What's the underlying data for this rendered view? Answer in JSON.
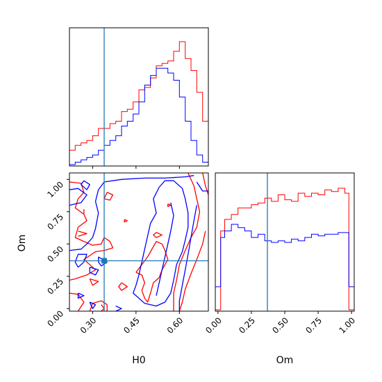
{
  "colors": {
    "red": "#ff0000",
    "blue": "#0000ff",
    "truth": "#1f77b4",
    "frame": "#000000"
  },
  "chart_data": [
    {
      "type": "step-histogram",
      "panel": "H0 marginal",
      "x_range": [
        0.22,
        0.7
      ],
      "bins_edges": [
        0.22,
        0.24,
        0.26,
        0.28,
        0.3,
        0.32,
        0.34,
        0.36,
        0.38,
        0.4,
        0.42,
        0.44,
        0.46,
        0.48,
        0.5,
        0.52,
        0.54,
        0.56,
        0.58,
        0.6,
        0.62,
        0.64,
        0.66,
        0.68,
        0.7
      ],
      "series": [
        {
          "color": "red",
          "counts": [
            6,
            8,
            9,
            10,
            12,
            15,
            15,
            17,
            18,
            22,
            23,
            26,
            31,
            32,
            36,
            41,
            42,
            43,
            47,
            51,
            44,
            39,
            30,
            18
          ]
        },
        {
          "color": "blue",
          "counts": [
            0,
            1,
            2,
            3,
            4,
            6,
            8,
            10,
            12,
            16,
            18,
            21,
            26,
            33,
            37,
            40,
            40,
            38,
            35,
            28,
            18,
            10,
            4,
            1
          ]
        }
      ],
      "truth": 0.34,
      "ticks": [
        0.3,
        0.45,
        0.6
      ]
    },
    {
      "type": "contour",
      "panel": "Om vs H0 joint",
      "x_range": [
        0.22,
        0.7
      ],
      "y_range": [
        -0.02,
        1.05
      ],
      "xlabel": "H0",
      "ylabel": "Om",
      "x_ticks": [
        "0.30",
        "0.45",
        "0.60"
      ],
      "y_ticks": [
        "0.00",
        "0.25",
        "0.50",
        "0.75",
        "1.00"
      ],
      "x_tick_values": [
        0.3,
        0.45,
        0.6
      ],
      "y_tick_values": [
        0.0,
        0.25,
        0.5,
        0.75,
        1.0
      ],
      "truth": {
        "x": 0.34,
        "y": 0.37
      },
      "red_contours": [
        [
          [
            0.63,
            1.05
          ],
          [
            0.65,
            0.95
          ],
          [
            0.66,
            0.85
          ],
          [
            0.67,
            0.75
          ],
          [
            0.66,
            0.63
          ],
          [
            0.64,
            0.55
          ],
          [
            0.62,
            0.45
          ],
          [
            0.6,
            0.34
          ],
          [
            0.59,
            0.22
          ],
          [
            0.58,
            0.12
          ],
          [
            0.58,
            -0.02
          ]
        ],
        [
          [
            0.68,
            1.05
          ],
          [
            0.69,
            0.95
          ],
          [
            0.7,
            0.88
          ]
        ],
        [
          [
            0.69,
            0.6
          ],
          [
            0.68,
            0.5
          ],
          [
            0.66,
            0.38
          ],
          [
            0.64,
            0.27
          ],
          [
            0.62,
            0.15
          ],
          [
            0.61,
            0.05
          ],
          [
            0.6,
            -0.02
          ]
        ],
        [
          [
            0.22,
            0.98
          ],
          [
            0.26,
            0.97
          ],
          [
            0.27,
            0.9
          ],
          [
            0.25,
            0.85
          ],
          [
            0.24,
            0.78
          ],
          [
            0.27,
            0.73
          ],
          [
            0.28,
            0.68
          ],
          [
            0.25,
            0.63
          ],
          [
            0.24,
            0.55
          ],
          [
            0.27,
            0.52
          ],
          [
            0.3,
            0.49
          ],
          [
            0.33,
            0.5
          ],
          [
            0.34,
            0.55
          ],
          [
            0.36,
            0.52
          ],
          [
            0.37,
            0.47
          ],
          [
            0.34,
            0.45
          ],
          [
            0.31,
            0.44
          ],
          [
            0.29,
            0.41
          ],
          [
            0.27,
            0.38
          ],
          [
            0.29,
            0.34
          ],
          [
            0.31,
            0.3
          ],
          [
            0.28,
            0.26
          ],
          [
            0.24,
            0.23
          ],
          [
            0.22,
            0.22
          ]
        ],
        [
          [
            0.22,
            0.12
          ],
          [
            0.25,
            0.11
          ],
          [
            0.27,
            0.05
          ],
          [
            0.25,
            -0.02
          ]
        ],
        [
          [
            0.29,
            -0.02
          ],
          [
            0.3,
            0.04
          ],
          [
            0.33,
            0.06
          ],
          [
            0.35,
            0.03
          ],
          [
            0.35,
            -0.02
          ]
        ],
        [
          [
            0.35,
            0.9
          ],
          [
            0.37,
            0.88
          ],
          [
            0.36,
            0.84
          ],
          [
            0.34,
            0.85
          ],
          [
            0.35,
            0.9
          ]
        ],
        [
          [
            0.41,
            0.69
          ],
          [
            0.42,
            0.68
          ],
          [
            0.41,
            0.67
          ],
          [
            0.41,
            0.69
          ]
        ],
        [
          [
            0.52,
            0.59
          ],
          [
            0.54,
            0.57
          ],
          [
            0.52,
            0.55
          ],
          [
            0.51,
            0.57
          ],
          [
            0.52,
            0.59
          ]
        ],
        [
          [
            0.56,
            0.81
          ],
          [
            0.57,
            0.8
          ],
          [
            0.56,
            0.79
          ],
          [
            0.56,
            0.81
          ]
        ],
        [
          [
            0.27,
            0.77
          ],
          [
            0.27,
            0.73
          ]
        ],
        [
          [
            0.25,
            0.6
          ],
          [
            0.28,
            0.58
          ],
          [
            0.25,
            0.56
          ]
        ],
        [
          [
            0.45,
            0.28
          ],
          [
            0.47,
            0.26
          ],
          [
            0.48,
            0.2
          ],
          [
            0.47,
            0.14
          ],
          [
            0.48,
            0.08
          ],
          [
            0.49,
            0.05
          ],
          [
            0.5,
            0.12
          ],
          [
            0.51,
            0.2
          ],
          [
            0.53,
            0.24
          ],
          [
            0.54,
            0.3
          ],
          [
            0.56,
            0.38
          ],
          [
            0.55,
            0.45
          ],
          [
            0.54,
            0.5
          ],
          [
            0.52,
            0.52
          ],
          [
            0.51,
            0.48
          ],
          [
            0.49,
            0.4
          ],
          [
            0.47,
            0.34
          ],
          [
            0.45,
            0.28
          ]
        ],
        [
          [
            0.4,
            0.2
          ],
          [
            0.42,
            0.17
          ],
          [
            0.4,
            0.14
          ],
          [
            0.39,
            0.17
          ],
          [
            0.4,
            0.2
          ]
        ],
        [
          [
            0.29,
            0.23
          ],
          [
            0.32,
            0.21
          ],
          [
            0.3,
            0.18
          ],
          [
            0.29,
            0.23
          ]
        ],
        [
          [
            0.33,
            0.03
          ],
          [
            0.34,
            0.0
          ],
          [
            0.33,
            -0.02
          ]
        ]
      ],
      "blue_contours": [
        [
          [
            0.22,
            0.45
          ],
          [
            0.26,
            0.46
          ],
          [
            0.28,
            0.5
          ],
          [
            0.3,
            0.55
          ],
          [
            0.31,
            0.62
          ],
          [
            0.32,
            0.74
          ],
          [
            0.31,
            0.83
          ],
          [
            0.32,
            0.92
          ],
          [
            0.34,
            0.98
          ],
          [
            0.4,
            1.0
          ],
          [
            0.48,
            1.01
          ],
          [
            0.55,
            1.01
          ],
          [
            0.62,
            1.02
          ],
          [
            0.65,
            1.03
          ]
        ],
        [
          [
            0.27,
            0.99
          ],
          [
            0.29,
            0.96
          ],
          [
            0.28,
            0.92
          ],
          [
            0.26,
            0.96
          ],
          [
            0.27,
            0.99
          ]
        ],
        [
          [
            0.55,
            0.99
          ],
          [
            0.53,
            0.94
          ],
          [
            0.51,
            0.85
          ],
          [
            0.52,
            0.74
          ],
          [
            0.5,
            0.66
          ],
          [
            0.49,
            0.56
          ],
          [
            0.48,
            0.46
          ],
          [
            0.47,
            0.36
          ],
          [
            0.46,
            0.26
          ],
          [
            0.45,
            0.18
          ],
          [
            0.44,
            0.12
          ],
          [
            0.46,
            0.08
          ],
          [
            0.48,
            0.04
          ],
          [
            0.52,
            0.02
          ],
          [
            0.55,
            0.05
          ],
          [
            0.57,
            0.12
          ],
          [
            0.58,
            0.22
          ],
          [
            0.59,
            0.34
          ],
          [
            0.61,
            0.44
          ],
          [
            0.62,
            0.53
          ],
          [
            0.63,
            0.63
          ],
          [
            0.63,
            0.74
          ],
          [
            0.62,
            0.85
          ],
          [
            0.61,
            0.93
          ],
          [
            0.58,
            0.99
          ],
          [
            0.55,
            0.99
          ]
        ],
        [
          [
            0.57,
            0.82
          ],
          [
            0.58,
            0.72
          ],
          [
            0.57,
            0.6
          ],
          [
            0.56,
            0.5
          ],
          [
            0.55,
            0.4
          ],
          [
            0.54,
            0.3
          ],
          [
            0.53,
            0.2
          ],
          [
            0.52,
            0.1
          ]
        ],
        [
          [
            0.66,
            0.98
          ],
          [
            0.68,
            0.91
          ],
          [
            0.7,
            0.91
          ]
        ],
        [
          [
            0.66,
            0.8
          ],
          [
            0.65,
            0.68
          ],
          [
            0.64,
            0.55
          ],
          [
            0.63,
            0.42
          ],
          [
            0.62,
            0.3
          ],
          [
            0.61,
            0.18
          ],
          [
            0.6,
            0.06
          ],
          [
            0.6,
            -0.02
          ]
        ],
        [
          [
            0.25,
            0.32
          ],
          [
            0.27,
            0.36
          ],
          [
            0.28,
            0.42
          ],
          [
            0.25,
            0.42
          ],
          [
            0.24,
            0.36
          ],
          [
            0.25,
            0.32
          ]
        ],
        [
          [
            0.22,
            0.8
          ],
          [
            0.26,
            0.82
          ],
          [
            0.28,
            0.88
          ],
          [
            0.25,
            0.93
          ],
          [
            0.22,
            0.92
          ]
        ],
        [
          [
            0.29,
            0.32
          ],
          [
            0.32,
            0.3
          ],
          [
            0.31,
            0.26
          ],
          [
            0.29,
            0.28
          ],
          [
            0.29,
            0.32
          ]
        ],
        [
          [
            0.25,
            0.12
          ],
          [
            0.27,
            0.1
          ],
          [
            0.25,
            0.08
          ],
          [
            0.25,
            0.12
          ]
        ],
        [
          [
            0.38,
            0.02
          ],
          [
            0.4,
            0.0
          ],
          [
            0.38,
            -0.02
          ]
        ],
        [
          [
            0.29,
            0.05
          ],
          [
            0.31,
            0.03
          ],
          [
            0.3,
            0.0
          ],
          [
            0.29,
            0.05
          ]
        ],
        [
          [
            0.32,
            0.4
          ],
          [
            0.35,
            0.36
          ],
          [
            0.33,
            0.33
          ],
          [
            0.32,
            0.36
          ],
          [
            0.32,
            0.4
          ]
        ]
      ]
    },
    {
      "type": "step-histogram",
      "panel": "Om marginal",
      "x_range": [
        -0.02,
        1.02
      ],
      "bins_edges": [
        -0.02,
        0.02,
        0.05,
        0.1,
        0.15,
        0.2,
        0.25,
        0.3,
        0.35,
        0.4,
        0.45,
        0.5,
        0.55,
        0.6,
        0.65,
        0.7,
        0.75,
        0.8,
        0.85,
        0.9,
        0.95,
        0.98,
        1.02
      ],
      "series": [
        {
          "color": "red",
          "counts": [
            0,
            48,
            55,
            58,
            62,
            62,
            64,
            65,
            68,
            66,
            70,
            67,
            66,
            71,
            69,
            71,
            70,
            73,
            72,
            74,
            71,
            0
          ]
        },
        {
          "color": "blue",
          "counts": [
            14,
            44,
            48,
            52,
            50,
            48,
            44,
            46,
            42,
            41,
            42,
            41,
            43,
            42,
            44,
            46,
            45,
            46,
            46,
            47,
            47,
            14
          ]
        }
      ],
      "truth": 0.37,
      "xlabel": "Om",
      "ticks": [
        "0.00",
        "0.25",
        "0.50",
        "0.75",
        "1.00"
      ],
      "tick_values": [
        0.0,
        0.25,
        0.5,
        0.75,
        1.0
      ]
    }
  ]
}
